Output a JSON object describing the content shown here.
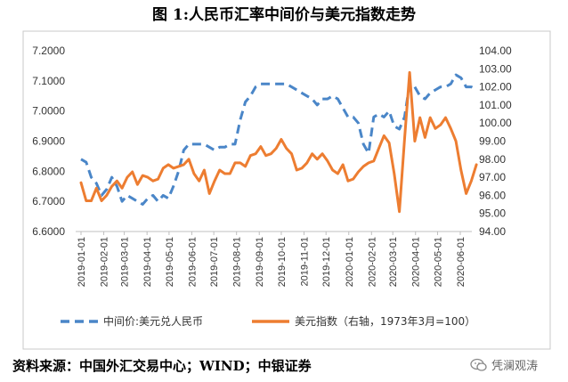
{
  "chart_data": {
    "type": "line",
    "title": "图 1:人民币汇率中间价与美元指数走势",
    "x_ticks": [
      "2019-01-01",
      "2019-02-01",
      "2019-03-01",
      "2019-04-01",
      "2019-05-01",
      "2019-06-01",
      "2019-07-01",
      "2019-08-01",
      "2019-09-01",
      "2019-10-01",
      "2019-11-01",
      "2019-12-01",
      "2020-01-01",
      "2020-02-01",
      "2020-03-01",
      "2020-04-01",
      "2020-05-01",
      "2020-06-01"
    ],
    "y_left": {
      "min": 6.6,
      "max": 7.2,
      "ticks": [
        "6.6000",
        "6.7000",
        "6.8000",
        "6.9000",
        "7.0000",
        "7.1000",
        "7.2000"
      ]
    },
    "y_right": {
      "min": 94.0,
      "max": 104.0,
      "ticks": [
        "94.00",
        "95.00",
        "96.00",
        "97.00",
        "98.00",
        "99.00",
        "100.00",
        "101.00",
        "102.00",
        "103.00",
        "104.00"
      ]
    },
    "grid": false,
    "legend_position": "bottom",
    "series": [
      {
        "name": "中间价:美元兑人民币",
        "axis": "left",
        "color": "#4a86c8",
        "dash": true,
        "points": [
          [
            "2019-01-01",
            6.84
          ],
          [
            "2019-01-08",
            6.83
          ],
          [
            "2019-01-15",
            6.78
          ],
          [
            "2019-01-22",
            6.76
          ],
          [
            "2019-01-29",
            6.72
          ],
          [
            "2019-02-05",
            6.74
          ],
          [
            "2019-02-12",
            6.78
          ],
          [
            "2019-02-19",
            6.75
          ],
          [
            "2019-02-26",
            6.7
          ],
          [
            "2019-03-05",
            6.72
          ],
          [
            "2019-03-12",
            6.71
          ],
          [
            "2019-03-19",
            6.7
          ],
          [
            "2019-03-26",
            6.69
          ],
          [
            "2019-04-02",
            6.71
          ],
          [
            "2019-04-09",
            6.72
          ],
          [
            "2019-04-16",
            6.7
          ],
          [
            "2019-04-23",
            6.72
          ],
          [
            "2019-04-30",
            6.71
          ],
          [
            "2019-05-07",
            6.75
          ],
          [
            "2019-05-14",
            6.8
          ],
          [
            "2019-05-21",
            6.87
          ],
          [
            "2019-05-28",
            6.89
          ],
          [
            "2019-06-04",
            6.89
          ],
          [
            "2019-06-11",
            6.89
          ],
          [
            "2019-06-18",
            6.89
          ],
          [
            "2019-06-25",
            6.88
          ],
          [
            "2019-07-02",
            6.87
          ],
          [
            "2019-07-09",
            6.88
          ],
          [
            "2019-07-16",
            6.88
          ],
          [
            "2019-07-23",
            6.89
          ],
          [
            "2019-07-30",
            6.89
          ],
          [
            "2019-08-06",
            6.97
          ],
          [
            "2019-08-13",
            7.03
          ],
          [
            "2019-08-20",
            7.05
          ],
          [
            "2019-08-27",
            7.08
          ],
          [
            "2019-09-03",
            7.09
          ],
          [
            "2019-09-10",
            7.09
          ],
          [
            "2019-09-17",
            7.09
          ],
          [
            "2019-09-24",
            7.09
          ],
          [
            "2019-10-01",
            7.09
          ],
          [
            "2019-10-08",
            7.09
          ],
          [
            "2019-10-15",
            7.08
          ],
          [
            "2019-10-22",
            7.07
          ],
          [
            "2019-10-29",
            7.06
          ],
          [
            "2019-11-05",
            7.05
          ],
          [
            "2019-11-12",
            7.04
          ],
          [
            "2019-11-19",
            7.02
          ],
          [
            "2019-11-26",
            7.04
          ],
          [
            "2019-12-03",
            7.04
          ],
          [
            "2019-12-10",
            7.05
          ],
          [
            "2019-12-17",
            7.04
          ],
          [
            "2019-12-24",
            7.01
          ],
          [
            "2019-12-31",
            6.98
          ],
          [
            "2020-01-07",
            6.98
          ],
          [
            "2020-01-14",
            6.96
          ],
          [
            "2020-01-21",
            6.89
          ],
          [
            "2020-01-28",
            6.86
          ],
          [
            "2020-02-04",
            6.98
          ],
          [
            "2020-02-11",
            6.99
          ],
          [
            "2020-02-18",
            6.98
          ],
          [
            "2020-02-25",
            7.0
          ],
          [
            "2020-03-03",
            6.95
          ],
          [
            "2020-03-10",
            6.94
          ],
          [
            "2020-03-17",
            6.98
          ],
          [
            "2020-03-24",
            7.09
          ],
          [
            "2020-03-31",
            7.08
          ],
          [
            "2020-04-07",
            7.05
          ],
          [
            "2020-04-14",
            7.04
          ],
          [
            "2020-04-21",
            7.06
          ],
          [
            "2020-04-28",
            7.07
          ],
          [
            "2020-05-05",
            7.08
          ],
          [
            "2020-05-12",
            7.08
          ],
          [
            "2020-05-19",
            7.09
          ],
          [
            "2020-05-26",
            7.12
          ],
          [
            "2020-06-02",
            7.11
          ],
          [
            "2020-06-09",
            7.08
          ],
          [
            "2020-06-16",
            7.08
          ],
          [
            "2020-06-23",
            7.07
          ]
        ]
      },
      {
        "name": "美元指数（右轴，1973年3月=100）",
        "axis": "right",
        "color": "#ed7d31",
        "dash": false,
        "points": [
          [
            "2019-01-01",
            96.7
          ],
          [
            "2019-01-08",
            95.7
          ],
          [
            "2019-01-15",
            95.7
          ],
          [
            "2019-01-22",
            96.4
          ],
          [
            "2019-01-29",
            95.7
          ],
          [
            "2019-02-05",
            96.0
          ],
          [
            "2019-02-12",
            96.5
          ],
          [
            "2019-02-19",
            96.8
          ],
          [
            "2019-02-26",
            96.4
          ],
          [
            "2019-03-05",
            97.0
          ],
          [
            "2019-03-12",
            97.3
          ],
          [
            "2019-03-19",
            96.6
          ],
          [
            "2019-03-26",
            97.1
          ],
          [
            "2019-04-02",
            97.0
          ],
          [
            "2019-04-09",
            96.8
          ],
          [
            "2019-04-16",
            96.9
          ],
          [
            "2019-04-23",
            97.5
          ],
          [
            "2019-04-30",
            97.7
          ],
          [
            "2019-05-07",
            97.5
          ],
          [
            "2019-05-14",
            97.6
          ],
          [
            "2019-05-21",
            97.7
          ],
          [
            "2019-05-28",
            98.0
          ],
          [
            "2019-06-04",
            97.2
          ],
          [
            "2019-06-11",
            96.8
          ],
          [
            "2019-06-18",
            97.4
          ],
          [
            "2019-06-25",
            96.1
          ],
          [
            "2019-07-02",
            96.8
          ],
          [
            "2019-07-09",
            97.4
          ],
          [
            "2019-07-16",
            97.2
          ],
          [
            "2019-07-23",
            97.2
          ],
          [
            "2019-07-30",
            97.8
          ],
          [
            "2019-08-06",
            97.8
          ],
          [
            "2019-08-13",
            97.6
          ],
          [
            "2019-08-20",
            98.2
          ],
          [
            "2019-08-27",
            98.3
          ],
          [
            "2019-09-03",
            98.7
          ],
          [
            "2019-09-10",
            98.2
          ],
          [
            "2019-09-17",
            98.3
          ],
          [
            "2019-09-24",
            98.6
          ],
          [
            "2019-10-01",
            99.1
          ],
          [
            "2019-10-08",
            98.6
          ],
          [
            "2019-10-15",
            98.3
          ],
          [
            "2019-10-22",
            97.4
          ],
          [
            "2019-10-29",
            97.5
          ],
          [
            "2019-11-05",
            97.8
          ],
          [
            "2019-11-12",
            98.3
          ],
          [
            "2019-11-19",
            98.0
          ],
          [
            "2019-11-26",
            98.3
          ],
          [
            "2019-12-03",
            97.9
          ],
          [
            "2019-12-10",
            97.4
          ],
          [
            "2019-12-17",
            97.2
          ],
          [
            "2019-12-24",
            97.7
          ],
          [
            "2019-12-31",
            96.8
          ],
          [
            "2020-01-07",
            96.9
          ],
          [
            "2020-01-14",
            97.3
          ],
          [
            "2020-01-21",
            97.6
          ],
          [
            "2020-01-28",
            97.8
          ],
          [
            "2020-02-04",
            97.9
          ],
          [
            "2020-02-11",
            98.6
          ],
          [
            "2020-02-18",
            99.3
          ],
          [
            "2020-02-25",
            98.9
          ],
          [
            "2020-03-03",
            97.2
          ],
          [
            "2020-03-10",
            95.1
          ],
          [
            "2020-03-17",
            99.1
          ],
          [
            "2020-03-24",
            102.8
          ],
          [
            "2020-03-31",
            99.0
          ],
          [
            "2020-04-07",
            100.3
          ],
          [
            "2020-04-14",
            99.2
          ],
          [
            "2020-04-21",
            100.3
          ],
          [
            "2020-04-28",
            99.7
          ],
          [
            "2020-05-05",
            99.9
          ],
          [
            "2020-05-12",
            100.3
          ],
          [
            "2020-05-19",
            99.7
          ],
          [
            "2020-05-26",
            99.0
          ],
          [
            "2020-06-02",
            97.4
          ],
          [
            "2020-06-09",
            96.1
          ],
          [
            "2020-06-16",
            96.8
          ],
          [
            "2020-06-23",
            97.7
          ]
        ]
      }
    ]
  },
  "footer": {
    "source": "资料来源：中国外汇交易中心；WIND；中银证券",
    "watermark": "凭澜观涛"
  },
  "icons": {
    "watermark_logo": "wechat-official-account-icon"
  }
}
